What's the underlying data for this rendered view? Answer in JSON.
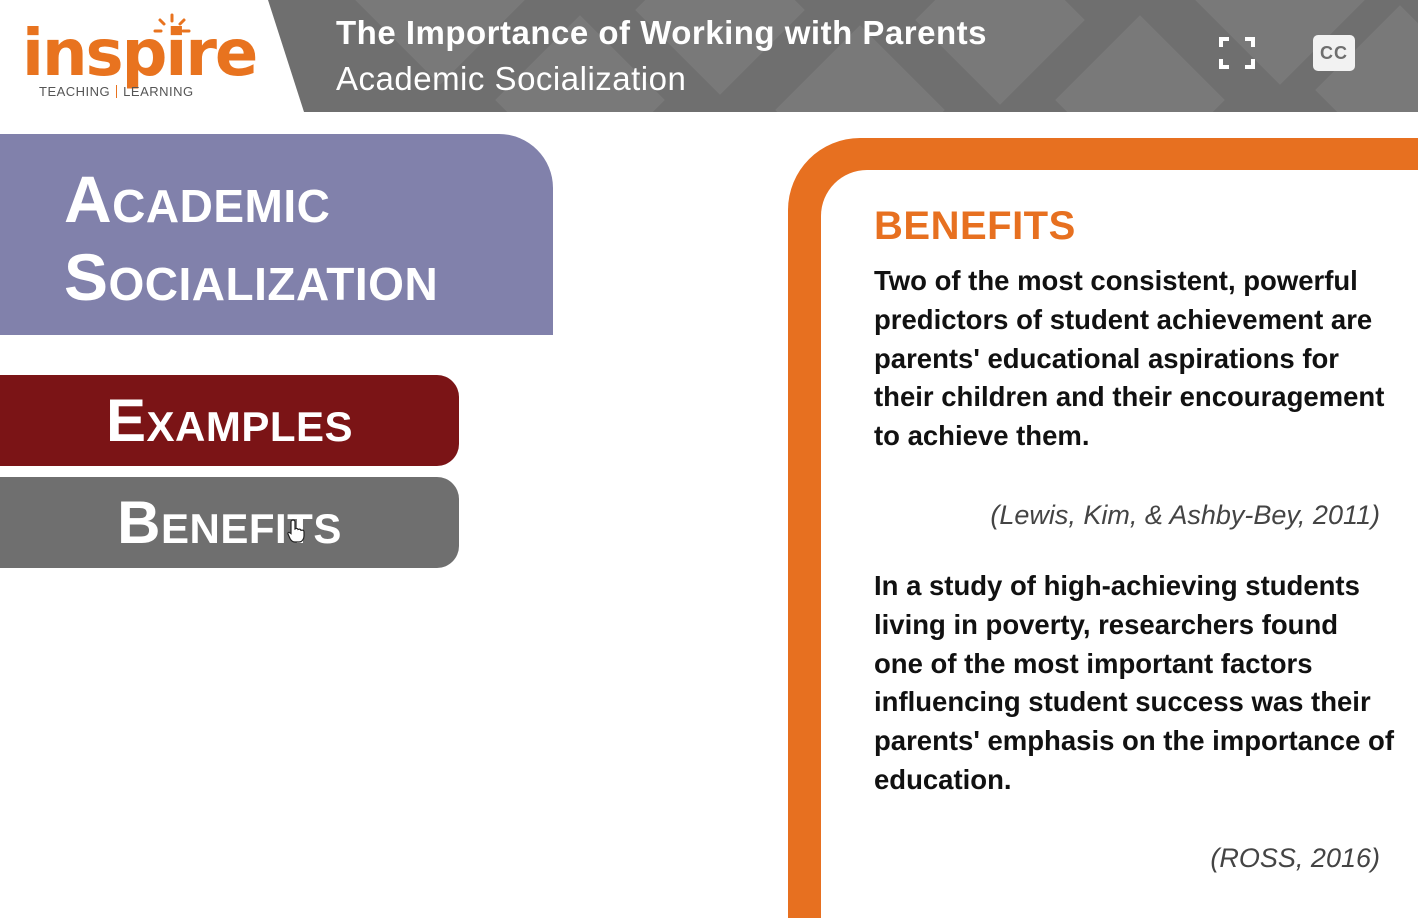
{
  "header": {
    "logo": {
      "word": "inspire",
      "tagline_left": "TEACHING",
      "tagline_right": "LEARNING"
    },
    "course_title": "The Importance of Working with Parents",
    "lesson_title": "Academic Socialization",
    "controls": {
      "fullscreen_icon": "fullscreen-icon",
      "cc_label": "CC"
    }
  },
  "sidebar": {
    "topic": {
      "line1": "Academic",
      "line2": "Socialization"
    },
    "nav": [
      {
        "label": "Examples",
        "color": "#7b1416"
      },
      {
        "label": "Benefits",
        "color": "#6f6f6f"
      }
    ]
  },
  "content": {
    "heading": "BENEFITS",
    "paragraphs": [
      {
        "text": "Two of the most consistent, powerful predictors of student achievement are parents' educational aspirations for their children and their encouragement to achieve them.",
        "citation": "(Lewis, Kim, & Ashby-Bey, 2011)"
      },
      {
        "text": "In a study of high-achieving students living in poverty, researchers found one of the most important factors influencing student success was their parents' emphasis on the importance of education.",
        "citation": "(ROSS, 2016)"
      }
    ]
  },
  "colors": {
    "accent_orange": "#e77020",
    "header_gray": "#6f6f6f",
    "topic_purple": "#8181ab",
    "examples_red": "#7b1416"
  }
}
